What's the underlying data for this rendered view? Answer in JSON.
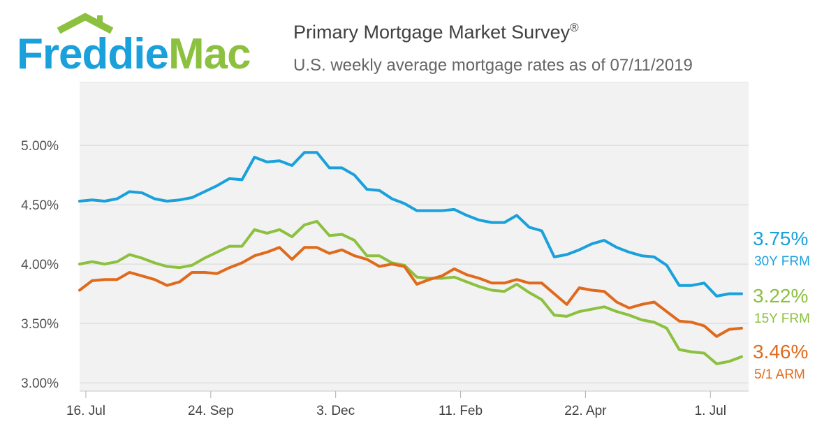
{
  "brand": {
    "logo_text": "FreddieMac",
    "color_blue": "#1aa0db",
    "color_green": "#8cc03f"
  },
  "header": {
    "title": "Primary Mortgage Market Survey",
    "title_mark": "®",
    "subtitle": "U.S. weekly average mortgage rates as of 07/11/2019"
  },
  "chart_data": {
    "type": "line",
    "title": "Primary Mortgage Market Survey",
    "subtitle": "U.S. weekly average mortgage rates as of 07/11/2019",
    "xlabel": "",
    "ylabel": "",
    "x_tick_labels": [
      {
        "label": "16. Jul",
        "index": 0.5
      },
      {
        "label": "24. Sep",
        "index": 10.5
      },
      {
        "label": "3. Dec",
        "index": 20.5
      },
      {
        "label": "11. Feb",
        "index": 30.5
      },
      {
        "label": "22. Apr",
        "index": 40.5
      },
      {
        "label": "1. Jul",
        "index": 50.5
      }
    ],
    "y_ticks": [
      3.0,
      3.5,
      4.0,
      4.5,
      5.0
    ],
    "y_tick_labels": [
      "3.00%",
      "3.50%",
      "4.00%",
      "4.50%",
      "5.00%"
    ],
    "ylim": [
      2.93,
      5.53
    ],
    "grid": true,
    "legend": "right-end labels",
    "series": [
      {
        "name": "30Y FRM",
        "last_label": "3.75%",
        "color": "#1aa0db",
        "values": [
          4.53,
          4.54,
          4.53,
          4.55,
          4.61,
          4.6,
          4.55,
          4.53,
          4.54,
          4.56,
          4.61,
          4.66,
          4.72,
          4.71,
          4.9,
          4.86,
          4.87,
          4.83,
          4.94,
          4.94,
          4.81,
          4.81,
          4.75,
          4.63,
          4.62,
          4.55,
          4.51,
          4.45,
          4.45,
          4.45,
          4.46,
          4.41,
          4.37,
          4.35,
          4.35,
          4.41,
          4.31,
          4.28,
          4.06,
          4.08,
          4.12,
          4.17,
          4.2,
          4.14,
          4.1,
          4.07,
          4.06,
          3.99,
          3.82,
          3.82,
          3.84,
          3.73,
          3.75,
          3.75
        ]
      },
      {
        "name": "15Y FRM",
        "last_label": "3.22%",
        "color": "#8cc03f",
        "values": [
          4.0,
          4.02,
          4.0,
          4.02,
          4.08,
          4.05,
          4.01,
          3.98,
          3.97,
          3.99,
          4.05,
          4.1,
          4.15,
          4.15,
          4.29,
          4.26,
          4.29,
          4.23,
          4.33,
          4.36,
          4.24,
          4.25,
          4.2,
          4.07,
          4.07,
          4.01,
          3.99,
          3.89,
          3.88,
          3.88,
          3.89,
          3.85,
          3.81,
          3.78,
          3.77,
          3.83,
          3.76,
          3.7,
          3.57,
          3.56,
          3.6,
          3.62,
          3.64,
          3.6,
          3.57,
          3.53,
          3.51,
          3.46,
          3.28,
          3.26,
          3.25,
          3.16,
          3.18,
          3.22
        ]
      },
      {
        "name": "5/1 ARM",
        "last_label": "3.46%",
        "color": "#e06a1c",
        "values": [
          3.78,
          3.86,
          3.87,
          3.87,
          3.93,
          3.9,
          3.87,
          3.82,
          3.85,
          3.93,
          3.93,
          3.92,
          3.97,
          4.01,
          4.07,
          4.1,
          4.14,
          4.04,
          4.14,
          4.14,
          4.09,
          4.12,
          4.07,
          4.04,
          3.98,
          4.0,
          3.98,
          3.83,
          3.87,
          3.9,
          3.96,
          3.91,
          3.88,
          3.84,
          3.84,
          3.87,
          3.84,
          3.84,
          3.75,
          3.66,
          3.8,
          3.78,
          3.77,
          3.68,
          3.63,
          3.66,
          3.68,
          3.6,
          3.52,
          3.51,
          3.48,
          3.39,
          3.45,
          3.46
        ]
      }
    ]
  }
}
